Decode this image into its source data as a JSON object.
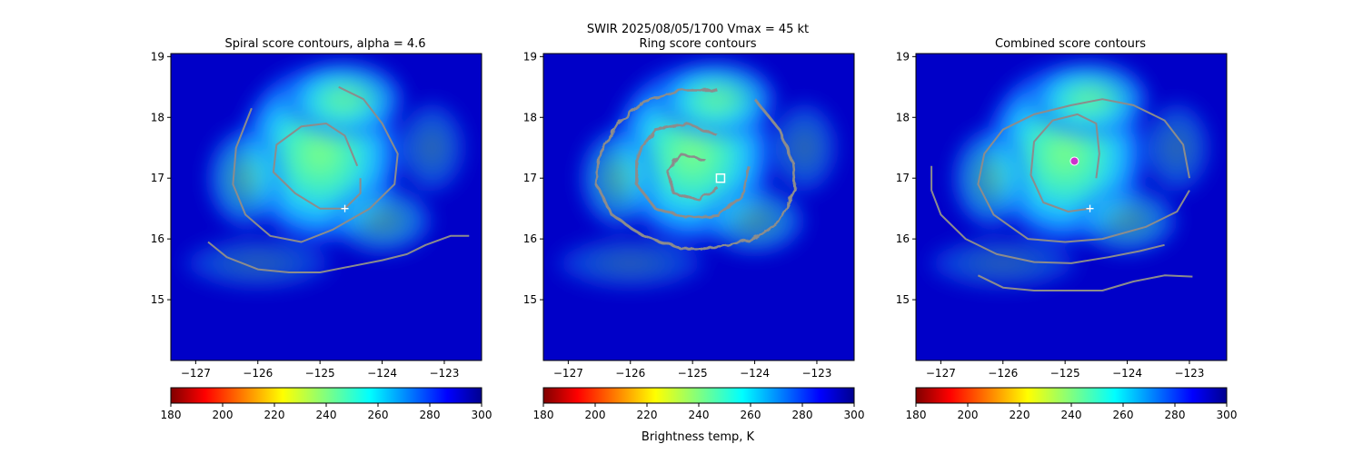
{
  "figure": {
    "suptitle_line1": "SWIR  2025/08/05/1700    Vmax = 45 kt",
    "colorbar_label": "Brightness temp, K"
  },
  "colors": {
    "contour": "#8c8c8c",
    "background_cold": "#0000c8",
    "marker_white": "#ffffff",
    "marker_magenta": "#cc33cc"
  },
  "chart_data": [
    {
      "type": "heatmap",
      "title": "Spiral score contours, alpha =  4.6",
      "xlim": [
        -127.4,
        -122.4
      ],
      "ylim": [
        14.0,
        19.05
      ],
      "x_ticks": [
        -127,
        -126,
        -125,
        -124,
        -123
      ],
      "y_ticks": [
        15,
        16,
        17,
        18,
        19
      ],
      "colorbar": {
        "range": [
          180,
          300
        ],
        "ticks": [
          180,
          200,
          220,
          240,
          260,
          280,
          300
        ],
        "colormap": "jet"
      },
      "storm_center_marker": {
        "shape": "plus",
        "x": -124.6,
        "y": 16.5
      },
      "contours": [
        {
          "level": "inner",
          "points": [
            [
              -124.4,
              17.2
            ],
            [
              -124.6,
              17.7
            ],
            [
              -124.9,
              17.9
            ],
            [
              -125.3,
              17.85
            ],
            [
              -125.7,
              17.55
            ],
            [
              -125.75,
              17.1
            ],
            [
              -125.4,
              16.75
            ],
            [
              -125.0,
              16.5
            ],
            [
              -124.6,
              16.5
            ],
            [
              -124.35,
              16.75
            ],
            [
              -124.35,
              17.0
            ]
          ]
        },
        {
          "level": "middle",
          "points": [
            [
              -124.7,
              18.5
            ],
            [
              -124.3,
              18.3
            ],
            [
              -124.0,
              17.9
            ],
            [
              -123.75,
              17.4
            ],
            [
              -123.8,
              16.9
            ],
            [
              -124.2,
              16.5
            ],
            [
              -124.8,
              16.15
            ],
            [
              -125.3,
              15.95
            ],
            [
              -125.8,
              16.05
            ],
            [
              -126.2,
              16.4
            ],
            [
              -126.4,
              16.9
            ],
            [
              -126.35,
              17.5
            ],
            [
              -126.1,
              18.15
            ]
          ]
        },
        {
          "level": "outer",
          "points": [
            [
              -126.8,
              15.95
            ],
            [
              -126.5,
              15.7
            ],
            [
              -126.0,
              15.5
            ],
            [
              -125.5,
              15.45
            ],
            [
              -125.0,
              15.45
            ],
            [
              -124.5,
              15.55
            ],
            [
              -124.0,
              15.65
            ],
            [
              -123.6,
              15.75
            ],
            [
              -123.3,
              15.9
            ],
            [
              -122.9,
              16.05
            ],
            [
              -122.6,
              16.05
            ]
          ]
        }
      ]
    },
    {
      "type": "heatmap",
      "title": "Ring score contours",
      "xlim": [
        -127.4,
        -122.4
      ],
      "ylim": [
        14.0,
        19.05
      ],
      "x_ticks": [
        -127,
        -126,
        -125,
        -124,
        -123
      ],
      "y_ticks": [
        15,
        16,
        17,
        18,
        19
      ],
      "colorbar": {
        "range": [
          180,
          300
        ],
        "ticks": [
          180,
          200,
          220,
          240,
          260,
          280,
          300
        ],
        "colormap": "jet"
      },
      "storm_center_marker": {
        "shape": "square",
        "x": -124.55,
        "y": 17.0
      },
      "contours": [
        {
          "level": "dense-ring",
          "points": [
            [
              -124.0,
              18.3
            ],
            [
              -123.6,
              17.8
            ],
            [
              -123.4,
              17.3
            ],
            [
              -123.35,
              16.8
            ],
            [
              -123.6,
              16.3
            ],
            [
              -124.0,
              16.0
            ],
            [
              -124.6,
              15.85
            ],
            [
              -125.2,
              15.85
            ],
            [
              -125.8,
              16.05
            ],
            [
              -126.3,
              16.4
            ],
            [
              -126.55,
              16.9
            ],
            [
              -126.5,
              17.4
            ],
            [
              -126.2,
              17.9
            ],
            [
              -125.8,
              18.25
            ],
            [
              -125.2,
              18.45
            ],
            [
              -124.6,
              18.45
            ]
          ]
        },
        {
          "level": "interior-1",
          "points": [
            [
              -124.6,
              17.7
            ],
            [
              -125.1,
              17.9
            ],
            [
              -125.6,
              17.8
            ],
            [
              -125.9,
              17.4
            ],
            [
              -125.9,
              16.9
            ],
            [
              -125.6,
              16.5
            ],
            [
              -125.1,
              16.35
            ],
            [
              -124.6,
              16.4
            ],
            [
              -124.2,
              16.7
            ],
            [
              -124.1,
              17.2
            ]
          ]
        },
        {
          "level": "interior-2",
          "points": [
            [
              -124.8,
              17.3
            ],
            [
              -125.2,
              17.4
            ],
            [
              -125.4,
              17.1
            ],
            [
              -125.3,
              16.75
            ],
            [
              -124.9,
              16.65
            ],
            [
              -124.6,
              16.85
            ]
          ]
        }
      ]
    },
    {
      "type": "heatmap",
      "title": "Combined score contours",
      "xlim": [
        -127.4,
        -122.4
      ],
      "ylim": [
        14.0,
        19.05
      ],
      "x_ticks": [
        -127,
        -126,
        -125,
        -124,
        -123
      ],
      "y_ticks": [
        15,
        16,
        17,
        18,
        19
      ],
      "colorbar": {
        "range": [
          180,
          300
        ],
        "ticks": [
          180,
          200,
          220,
          240,
          260,
          280,
          300
        ],
        "colormap": "jet"
      },
      "storm_center_marker": {
        "shape": "plus",
        "x": -124.6,
        "y": 16.5
      },
      "best_center_marker": {
        "shape": "circle",
        "x": -124.85,
        "y": 17.28
      },
      "contours": [
        {
          "level": "inner",
          "points": [
            [
              -124.5,
              17.0
            ],
            [
              -124.45,
              17.4
            ],
            [
              -124.5,
              17.9
            ],
            [
              -124.8,
              18.05
            ],
            [
              -125.2,
              17.95
            ],
            [
              -125.5,
              17.6
            ],
            [
              -125.55,
              17.05
            ],
            [
              -125.35,
              16.6
            ],
            [
              -124.95,
              16.45
            ],
            [
              -124.6,
              16.5
            ]
          ]
        },
        {
          "level": "middle",
          "points": [
            [
              -123.0,
              17.0
            ],
            [
              -123.1,
              17.55
            ],
            [
              -123.4,
              17.95
            ],
            [
              -123.9,
              18.2
            ],
            [
              -124.4,
              18.3
            ],
            [
              -124.9,
              18.2
            ],
            [
              -125.5,
              18.05
            ],
            [
              -126.0,
              17.8
            ],
            [
              -126.3,
              17.4
            ],
            [
              -126.4,
              16.9
            ],
            [
              -126.15,
              16.4
            ],
            [
              -125.6,
              16.0
            ],
            [
              -125.0,
              15.95
            ],
            [
              -124.4,
              16.0
            ],
            [
              -123.7,
              16.2
            ],
            [
              -123.2,
              16.45
            ],
            [
              -123.0,
              16.8
            ]
          ]
        },
        {
          "level": "outer-left",
          "points": [
            [
              -127.15,
              17.2
            ],
            [
              -127.15,
              16.8
            ],
            [
              -127.0,
              16.4
            ],
            [
              -126.6,
              16.0
            ],
            [
              -126.1,
              15.75
            ],
            [
              -125.5,
              15.62
            ],
            [
              -124.9,
              15.6
            ],
            [
              -124.3,
              15.7
            ],
            [
              -123.8,
              15.8
            ],
            [
              -123.4,
              15.9
            ]
          ]
        },
        {
          "level": "outer-bottom",
          "points": [
            [
              -126.4,
              15.4
            ],
            [
              -126.0,
              15.2
            ],
            [
              -125.5,
              15.15
            ],
            [
              -125.0,
              15.15
            ],
            [
              -124.4,
              15.15
            ],
            [
              -123.9,
              15.3
            ],
            [
              -123.4,
              15.4
            ],
            [
              -122.95,
              15.38
            ]
          ]
        }
      ]
    }
  ]
}
